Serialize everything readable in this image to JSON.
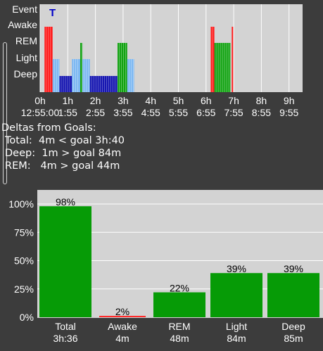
{
  "hypnogram": {
    "marker": "T",
    "stage_labels": [
      "Event",
      "Awake",
      "REM",
      "Light",
      "Deep"
    ],
    "hour_labels": [
      "0h",
      "1h",
      "2h",
      "3h",
      "4h",
      "5h",
      "6h",
      "7h",
      "8h",
      "9h"
    ],
    "clock_labels": [
      "12:55:00",
      "1:55",
      "2:55",
      "3:55",
      "4:55",
      "5:55",
      "6:55",
      "7:55",
      "8:55",
      "9:55"
    ],
    "colors": {
      "awake": "#ff1a1a",
      "rem": "#13a313",
      "light": "#7db8f2",
      "deep": "#1414b0",
      "background": "#d3d3d3"
    },
    "segments": [
      {
        "stage": "awake",
        "start": 0.16,
        "end": 0.45
      },
      {
        "stage": "light",
        "start": 0.45,
        "end": 0.7
      },
      {
        "stage": "deep",
        "start": 0.7,
        "end": 1.15
      },
      {
        "stage": "light",
        "start": 1.15,
        "end": 1.45
      },
      {
        "stage": "rem",
        "start": 1.45,
        "end": 1.53
      },
      {
        "stage": "light",
        "start": 1.53,
        "end": 1.8
      },
      {
        "stage": "deep",
        "start": 1.8,
        "end": 2.8
      },
      {
        "stage": "rem",
        "start": 2.8,
        "end": 3.15
      },
      {
        "stage": "light",
        "start": 3.15,
        "end": 3.4
      },
      {
        "stage": "awake",
        "start": 6.17,
        "end": 6.3
      },
      {
        "stage": "rem",
        "start": 6.3,
        "end": 6.88
      },
      {
        "stage": "awake",
        "start": 6.93,
        "end": 6.98
      }
    ]
  },
  "deltas": {
    "heading": "Deltas from Goals:",
    "total": "Total:  4m < goal 3h:40",
    "deep": "Deep:  1m > goal 84m",
    "rem": "REM:   4m > goal 44m"
  },
  "chart_data": {
    "type": "bar",
    "categories": [
      "Total",
      "Awake",
      "REM",
      "Light",
      "Deep"
    ],
    "sublabels": [
      "3h:36",
      "4m",
      "48m",
      "84m",
      "85m"
    ],
    "values": [
      98,
      2,
      22,
      39,
      39
    ],
    "value_labels": [
      "98%",
      "2%",
      "22%",
      "39%",
      "39%"
    ],
    "yticks": [
      "100%",
      "75%",
      "50%",
      "25%",
      "0%"
    ],
    "ylim": [
      0,
      100
    ],
    "colors": {
      "bar": "#069b06",
      "small_bar": "#ff2b2b",
      "background": "#d3d3d3"
    }
  }
}
